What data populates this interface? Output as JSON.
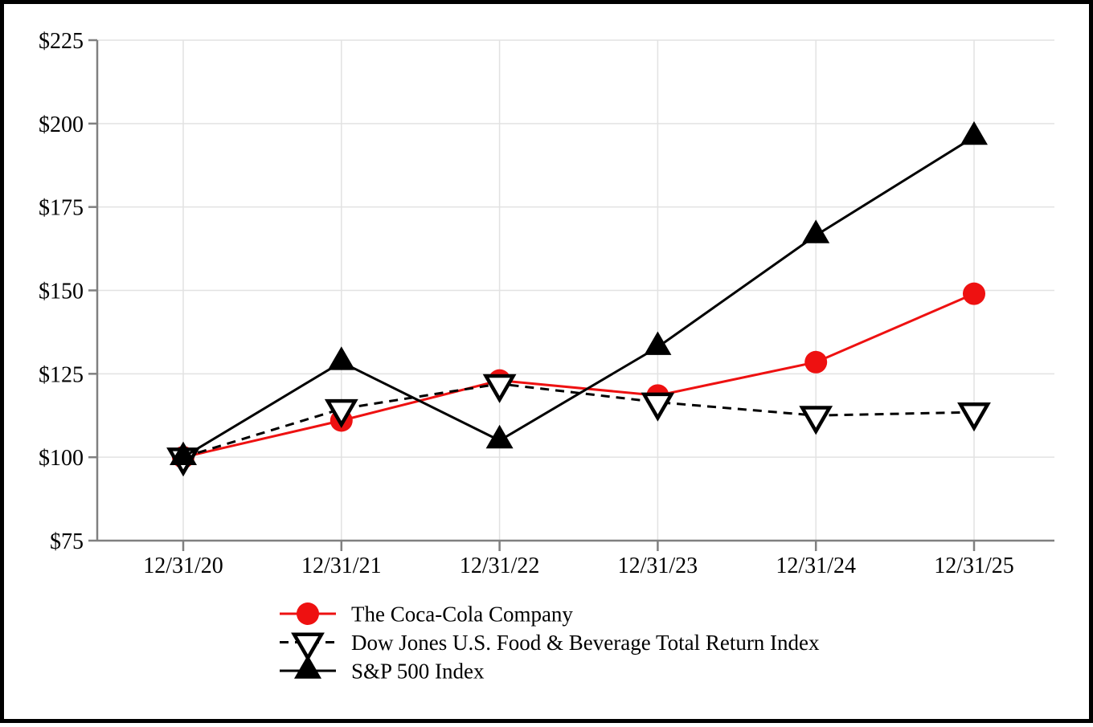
{
  "chart_data": {
    "type": "line",
    "title": "",
    "xlabel": "",
    "ylabel": "",
    "x_categories": [
      "12/31/20",
      "12/31/21",
      "12/31/22",
      "12/31/23",
      "12/31/24",
      "12/31/25"
    ],
    "y_ticks": [
      75,
      100,
      125,
      150,
      175,
      200,
      225
    ],
    "y_tick_labels": [
      "$75",
      "$100",
      "$125",
      "$150",
      "$175",
      "$200",
      "$225"
    ],
    "ylim": [
      75,
      225
    ],
    "grid": true,
    "legend_position": "bottom-left",
    "series": [
      {
        "name": "The Coca-Cola Company",
        "color": "#EE1111",
        "line_style": "solid",
        "marker": "filled-circle",
        "values": [
          100,
          111,
          123,
          118.5,
          128.5,
          149
        ]
      },
      {
        "name": "Dow Jones U.S. Food & Beverage Total Return Index",
        "color": "#000000",
        "line_style": "dashed",
        "marker": "hollow-triangle-down",
        "values": [
          100,
          114.5,
          122,
          116.5,
          112.5,
          113.5
        ]
      },
      {
        "name": "S&P 500 Index",
        "color": "#000000",
        "line_style": "solid",
        "marker": "filled-triangle-up",
        "values": [
          100,
          128.5,
          105,
          133,
          166.5,
          196
        ]
      }
    ]
  },
  "colors": {
    "background": "#FFFFFF",
    "frame_border": "#000000",
    "gridline": "#E2E2E2",
    "axis_spine": "#808080",
    "tick": "#808080",
    "text": "#000000",
    "coca_cola_red": "#EE1111",
    "marker_fill_hollow": "#FFFFFF"
  }
}
